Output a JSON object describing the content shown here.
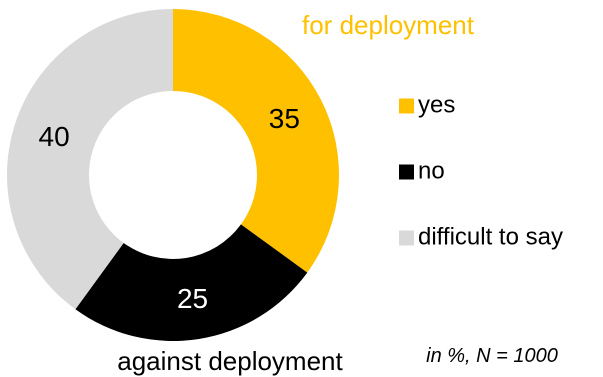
{
  "chart_data": {
    "type": "pie",
    "variant": "donut",
    "categories": [
      "yes",
      "no",
      "difficult to say"
    ],
    "values": [
      35,
      25,
      40
    ],
    "colors": [
      "#FFC000",
      "#000000",
      "#D9D9D9"
    ],
    "label_colors": [
      "#000000",
      "#FFFFFF",
      "#000000"
    ],
    "legend_position": "right",
    "annotations": {
      "top": "for deployment",
      "top_color": "#FFC000",
      "bottom": "against deployment",
      "note": "in %, N = 1000"
    }
  }
}
